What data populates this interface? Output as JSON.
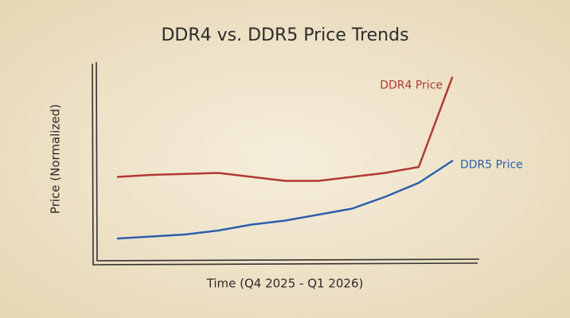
{
  "chart_data": {
    "type": "line",
    "title": "DDR4 vs. DDR5 Price Trends",
    "x_label": "Time (Q4 2025 - Q1 2026)",
    "y_label": "Price (Normalized)",
    "x": [
      0,
      1,
      2,
      3,
      4,
      5,
      6,
      7,
      8,
      9,
      10
    ],
    "xlim": [
      0,
      10
    ],
    "ylim": [
      0,
      1
    ],
    "series": [
      {
        "name": "DDR4 Price",
        "color": "#b03a32",
        "values": [
          0.43,
          0.44,
          0.445,
          0.45,
          0.43,
          0.41,
          0.41,
          0.43,
          0.45,
          0.48,
          0.93
        ]
      },
      {
        "name": "DDR5 Price",
        "color": "#2d5fae",
        "values": [
          0.12,
          0.13,
          0.14,
          0.16,
          0.19,
          0.21,
          0.24,
          0.27,
          0.33,
          0.4,
          0.51
        ]
      }
    ],
    "legend": "line-end"
  }
}
